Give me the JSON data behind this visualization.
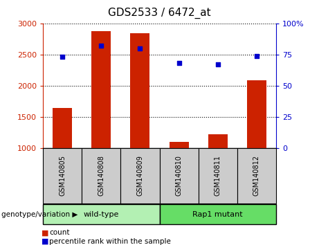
{
  "title": "GDS2533 / 6472_at",
  "samples": [
    "GSM140805",
    "GSM140808",
    "GSM140809",
    "GSM140810",
    "GSM140811",
    "GSM140812"
  ],
  "counts": [
    1640,
    2870,
    2840,
    1100,
    1220,
    2090
  ],
  "percentile_ranks": [
    73,
    82,
    80,
    68,
    67,
    74
  ],
  "bar_baseline": 1000,
  "ylim_left": [
    1000,
    3000
  ],
  "ylim_right": [
    0,
    100
  ],
  "yticks_left": [
    1000,
    1500,
    2000,
    2500,
    3000
  ],
  "yticks_right": [
    0,
    25,
    50,
    75,
    100
  ],
  "bar_color": "#cc2200",
  "dot_color": "#0000cc",
  "groups": [
    {
      "label": "wild-type",
      "indices": [
        0,
        1,
        2
      ],
      "color": "#b3f0b3"
    },
    {
      "label": "Rap1 mutant",
      "indices": [
        3,
        4,
        5
      ],
      "color": "#66dd66"
    }
  ],
  "genotype_label": "genotype/variation",
  "legend_count": "count",
  "legend_percentile": "percentile rank within the sample",
  "title_fontsize": 11,
  "tick_fontsize": 8,
  "sample_label_fontsize": 7
}
